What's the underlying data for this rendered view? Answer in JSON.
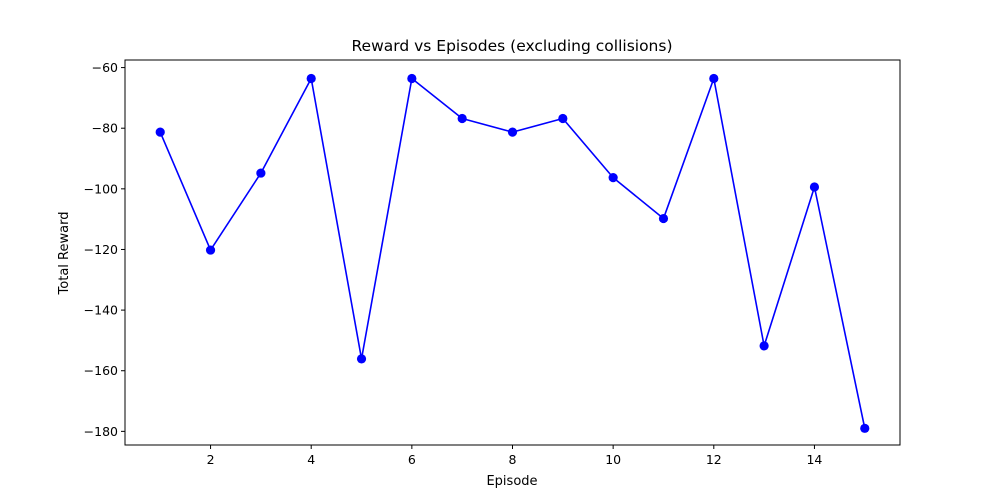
{
  "chart_data": {
    "type": "line",
    "title": "Reward vs Episodes (excluding collisions)",
    "xlabel": "Episode",
    "ylabel": "Total Reward",
    "xlim": [
      0.3,
      15.7
    ],
    "ylim": [
      -184.5,
      -57.5
    ],
    "xticks": [
      2,
      4,
      6,
      8,
      10,
      12,
      14
    ],
    "yticks": [
      -180,
      -160,
      -140,
      -120,
      -100,
      -80,
      -60
    ],
    "grid": false,
    "marker": "circle",
    "line_color": "#0000ff",
    "series": [
      {
        "x": [
          1,
          2,
          3,
          4,
          5,
          6,
          7,
          8,
          9,
          10,
          11,
          12,
          13,
          14,
          15
        ],
        "y": [
          -81.3,
          -120.2,
          -94.8,
          -63.6,
          -156.1,
          -63.6,
          -76.8,
          -81.3,
          -76.8,
          -96.3,
          -109.8,
          -63.6,
          -151.8,
          -99.4,
          -179.0
        ]
      }
    ]
  }
}
